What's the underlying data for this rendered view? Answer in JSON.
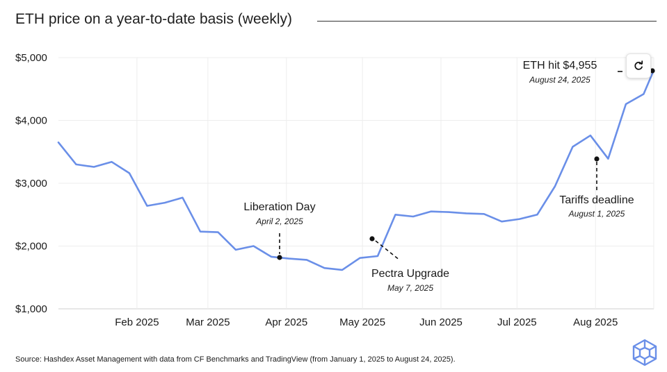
{
  "header": {
    "title": "ETH price on a year-to-date basis (weekly)"
  },
  "footer": {
    "source": "Source: Hashdex Asset Management with data from CF Benchmarks and TradingView (from January 1, 2025 to August 24, 2025)."
  },
  "controls": {
    "refresh_icon": "refresh-icon"
  },
  "brand": {
    "logo_icon": "cube-logo-icon",
    "accent_color": "#6a8fe8"
  },
  "chart_data": {
    "type": "line",
    "title": "ETH price on a year-to-date basis (weekly)",
    "xlabel": "",
    "ylabel": "",
    "ylim": [
      1000,
      5000
    ],
    "grid": true,
    "y_ticks": [
      {
        "value": 1000,
        "label": "$1,000"
      },
      {
        "value": 2000,
        "label": "$2,000"
      },
      {
        "value": 3000,
        "label": "$3,000"
      },
      {
        "value": 4000,
        "label": "$4,000"
      },
      {
        "value": 5000,
        "label": "$5,000"
      }
    ],
    "x_ticks": [
      {
        "date": "2025-02-01",
        "label": "Feb 2025"
      },
      {
        "date": "2025-03-01",
        "label": "Mar 2025"
      },
      {
        "date": "2025-04-01",
        "label": "Apr 2025"
      },
      {
        "date": "2025-05-01",
        "label": "May 2025"
      },
      {
        "date": "2025-06-01",
        "label": "Jun 2025"
      },
      {
        "date": "2025-07-01",
        "label": "Jul 2025"
      },
      {
        "date": "2025-08-01",
        "label": "Aug 2025"
      }
    ],
    "series": [
      {
        "color": "#6a8fe8",
        "points": [
          {
            "x": "2025-01-01",
            "y": 3650
          },
          {
            "x": "2025-01-08",
            "y": 3300
          },
          {
            "x": "2025-01-15",
            "y": 3260
          },
          {
            "x": "2025-01-22",
            "y": 3340
          },
          {
            "x": "2025-01-29",
            "y": 3160
          },
          {
            "x": "2025-02-05",
            "y": 2640
          },
          {
            "x": "2025-02-12",
            "y": 2690
          },
          {
            "x": "2025-02-19",
            "y": 2770
          },
          {
            "x": "2025-02-26",
            "y": 2230
          },
          {
            "x": "2025-03-05",
            "y": 2220
          },
          {
            "x": "2025-03-12",
            "y": 1940
          },
          {
            "x": "2025-03-19",
            "y": 2000
          },
          {
            "x": "2025-03-26",
            "y": 1830
          },
          {
            "x": "2025-04-02",
            "y": 1800
          },
          {
            "x": "2025-04-09",
            "y": 1780
          },
          {
            "x": "2025-04-16",
            "y": 1650
          },
          {
            "x": "2025-04-23",
            "y": 1620
          },
          {
            "x": "2025-04-30",
            "y": 1810
          },
          {
            "x": "2025-05-07",
            "y": 1840
          },
          {
            "x": "2025-05-14",
            "y": 2500
          },
          {
            "x": "2025-05-21",
            "y": 2470
          },
          {
            "x": "2025-05-28",
            "y": 2550
          },
          {
            "x": "2025-06-04",
            "y": 2540
          },
          {
            "x": "2025-06-11",
            "y": 2520
          },
          {
            "x": "2025-06-18",
            "y": 2510
          },
          {
            "x": "2025-06-25",
            "y": 2390
          },
          {
            "x": "2025-07-02",
            "y": 2430
          },
          {
            "x": "2025-07-09",
            "y": 2500
          },
          {
            "x": "2025-07-16",
            "y": 2950
          },
          {
            "x": "2025-07-23",
            "y": 3580
          },
          {
            "x": "2025-07-30",
            "y": 3760
          },
          {
            "x": "2025-08-06",
            "y": 3390
          },
          {
            "x": "2025-08-13",
            "y": 4260
          },
          {
            "x": "2025-08-20",
            "y": 4420
          },
          {
            "x": "2025-08-24",
            "y": 4800
          }
        ]
      }
    ],
    "annotations": [
      {
        "label": "Liberation Day",
        "date_label": "April 2, 2025",
        "x": "2025-04-02",
        "y": 1815
      },
      {
        "label": "Pectra Upgrade",
        "date_label": "May 7, 2025",
        "x": "2025-05-08",
        "y": 2120
      },
      {
        "label": "Tariffs deadline",
        "date_label": "August 1, 2025",
        "x": "2025-08-02",
        "y": 3390
      },
      {
        "label": "ETH hit $4,955",
        "date_label": "August 24, 2025",
        "x": "2025-08-24",
        "y": 4800
      }
    ]
  }
}
